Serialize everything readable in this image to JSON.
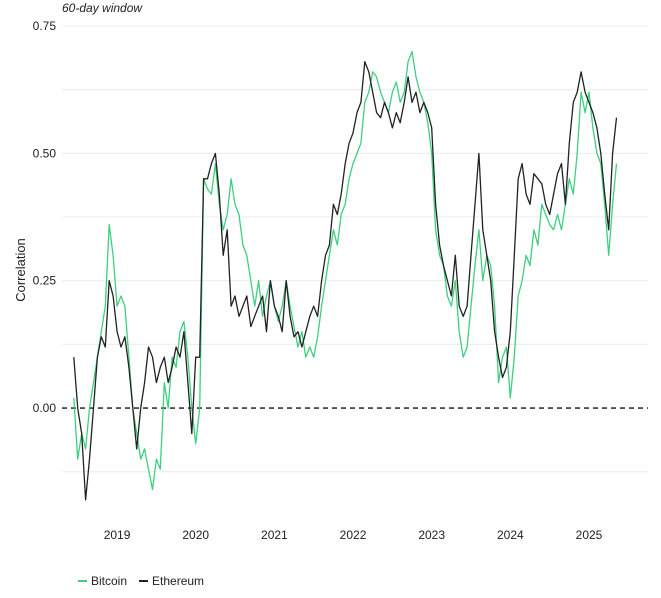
{
  "chart_data": {
    "type": "line",
    "subtitle": "60-day window",
    "ylabel": "Correlation",
    "xlabel": "",
    "ylim": [
      -0.2,
      0.75
    ],
    "y_ticks": [
      0.0,
      0.25,
      0.5,
      0.75
    ],
    "y_tick_labels": [
      "0.00",
      "0.25",
      "0.50",
      "0.75"
    ],
    "xlim": [
      2018.3,
      2025.75
    ],
    "x_ticks": [
      2019,
      2020,
      2021,
      2022,
      2023,
      2024,
      2025
    ],
    "x_tick_labels": [
      "2019",
      "2020",
      "2021",
      "2022",
      "2023",
      "2024",
      "2025"
    ],
    "reference_line": {
      "y": 0.0,
      "style": "dashed"
    },
    "grid": "horizontal",
    "legend_position": "bottom-left",
    "series": [
      {
        "name": "Bitcoin",
        "color": "#3ecf7f",
        "x": [
          2018.45,
          2018.5,
          2018.55,
          2018.6,
          2018.65,
          2018.7,
          2018.75,
          2018.8,
          2018.85,
          2018.9,
          2018.95,
          2019.0,
          2019.05,
          2019.1,
          2019.15,
          2019.2,
          2019.25,
          2019.3,
          2019.35,
          2019.4,
          2019.45,
          2019.5,
          2019.55,
          2019.6,
          2019.65,
          2019.7,
          2019.75,
          2019.8,
          2019.85,
          2019.9,
          2019.95,
          2020.0,
          2020.05,
          2020.1,
          2020.15,
          2020.2,
          2020.25,
          2020.3,
          2020.35,
          2020.4,
          2020.45,
          2020.5,
          2020.55,
          2020.6,
          2020.65,
          2020.7,
          2020.75,
          2020.8,
          2020.85,
          2020.9,
          2020.95,
          2021.0,
          2021.05,
          2021.1,
          2021.15,
          2021.2,
          2021.25,
          2021.3,
          2021.35,
          2021.4,
          2021.45,
          2021.5,
          2021.55,
          2021.6,
          2021.65,
          2021.7,
          2021.75,
          2021.8,
          2021.85,
          2021.9,
          2021.95,
          2022.0,
          2022.05,
          2022.1,
          2022.15,
          2022.2,
          2022.25,
          2022.3,
          2022.35,
          2022.4,
          2022.45,
          2022.5,
          2022.55,
          2022.6,
          2022.65,
          2022.7,
          2022.75,
          2022.8,
          2022.85,
          2022.9,
          2022.95,
          2023.0,
          2023.05,
          2023.1,
          2023.15,
          2023.2,
          2023.25,
          2023.3,
          2023.35,
          2023.4,
          2023.45,
          2023.5,
          2023.55,
          2023.6,
          2023.65,
          2023.7,
          2023.75,
          2023.8,
          2023.85,
          2023.9,
          2023.95,
          2024.0,
          2024.05,
          2024.1,
          2024.15,
          2024.2,
          2024.25,
          2024.3,
          2024.35,
          2024.4,
          2024.45,
          2024.5,
          2024.55,
          2024.6,
          2024.65,
          2024.7,
          2024.75,
          2024.8,
          2024.85,
          2024.9,
          2024.95,
          2025.0,
          2025.05,
          2025.1,
          2025.15,
          2025.2,
          2025.25,
          2025.3,
          2025.35
        ],
        "values": [
          0.02,
          -0.1,
          -0.05,
          -0.08,
          0.0,
          0.05,
          0.1,
          0.15,
          0.2,
          0.36,
          0.3,
          0.2,
          0.22,
          0.2,
          0.1,
          0.0,
          -0.05,
          -0.1,
          -0.08,
          -0.12,
          -0.16,
          -0.1,
          -0.12,
          0.05,
          0.0,
          0.1,
          0.08,
          0.15,
          0.17,
          0.1,
          0.0,
          -0.07,
          0.0,
          0.45,
          0.43,
          0.42,
          0.48,
          0.4,
          0.35,
          0.38,
          0.45,
          0.4,
          0.38,
          0.32,
          0.3,
          0.25,
          0.2,
          0.25,
          0.18,
          0.22,
          0.25,
          0.2,
          0.17,
          0.2,
          0.25,
          0.2,
          0.16,
          0.12,
          0.15,
          0.1,
          0.12,
          0.1,
          0.14,
          0.2,
          0.25,
          0.3,
          0.35,
          0.32,
          0.38,
          0.4,
          0.45,
          0.48,
          0.5,
          0.52,
          0.6,
          0.62,
          0.66,
          0.65,
          0.62,
          0.6,
          0.58,
          0.62,
          0.64,
          0.6,
          0.62,
          0.68,
          0.7,
          0.65,
          0.62,
          0.6,
          0.56,
          0.5,
          0.35,
          0.3,
          0.28,
          0.22,
          0.2,
          0.25,
          0.15,
          0.1,
          0.12,
          0.2,
          0.28,
          0.35,
          0.25,
          0.3,
          0.28,
          0.2,
          0.05,
          0.1,
          0.12,
          0.02,
          0.1,
          0.22,
          0.25,
          0.3,
          0.28,
          0.35,
          0.32,
          0.4,
          0.38,
          0.36,
          0.35,
          0.38,
          0.35,
          0.4,
          0.45,
          0.42,
          0.5,
          0.62,
          0.58,
          0.62,
          0.55,
          0.5,
          0.48,
          0.4,
          0.3,
          0.4,
          0.48
        ]
      },
      {
        "name": "Ethereum",
        "color": "#222222",
        "x": [
          2018.45,
          2018.5,
          2018.55,
          2018.6,
          2018.65,
          2018.7,
          2018.75,
          2018.8,
          2018.85,
          2018.9,
          2018.95,
          2019.0,
          2019.05,
          2019.1,
          2019.15,
          2019.2,
          2019.25,
          2019.3,
          2019.35,
          2019.4,
          2019.45,
          2019.5,
          2019.55,
          2019.6,
          2019.65,
          2019.7,
          2019.75,
          2019.8,
          2019.85,
          2019.9,
          2019.95,
          2020.0,
          2020.05,
          2020.1,
          2020.15,
          2020.2,
          2020.25,
          2020.3,
          2020.35,
          2020.4,
          2020.45,
          2020.5,
          2020.55,
          2020.6,
          2020.65,
          2020.7,
          2020.75,
          2020.8,
          2020.85,
          2020.9,
          2020.95,
          2021.0,
          2021.05,
          2021.1,
          2021.15,
          2021.2,
          2021.25,
          2021.3,
          2021.35,
          2021.4,
          2021.45,
          2021.5,
          2021.55,
          2021.6,
          2021.65,
          2021.7,
          2021.75,
          2021.8,
          2021.85,
          2021.9,
          2021.95,
          2022.0,
          2022.05,
          2022.1,
          2022.15,
          2022.2,
          2022.25,
          2022.3,
          2022.35,
          2022.4,
          2022.45,
          2022.5,
          2022.55,
          2022.6,
          2022.65,
          2022.7,
          2022.75,
          2022.8,
          2022.85,
          2022.9,
          2022.95,
          2023.0,
          2023.05,
          2023.1,
          2023.15,
          2023.2,
          2023.25,
          2023.3,
          2023.35,
          2023.4,
          2023.45,
          2023.5,
          2023.55,
          2023.6,
          2023.65,
          2023.7,
          2023.75,
          2023.8,
          2023.85,
          2023.9,
          2023.95,
          2024.0,
          2024.05,
          2024.1,
          2024.15,
          2024.2,
          2024.25,
          2024.3,
          2024.35,
          2024.4,
          2024.45,
          2024.5,
          2024.55,
          2024.6,
          2024.65,
          2024.7,
          2024.75,
          2024.8,
          2024.85,
          2024.9,
          2024.95,
          2025.0,
          2025.05,
          2025.1,
          2025.15,
          2025.2,
          2025.25,
          2025.3,
          2025.35
        ],
        "values": [
          0.1,
          0.0,
          -0.05,
          -0.18,
          -0.1,
          0.0,
          0.1,
          0.14,
          0.12,
          0.25,
          0.22,
          0.15,
          0.12,
          0.14,
          0.08,
          0.0,
          -0.08,
          0.0,
          0.05,
          0.12,
          0.1,
          0.05,
          0.08,
          0.1,
          0.05,
          0.08,
          0.12,
          0.1,
          0.15,
          0.05,
          -0.05,
          0.1,
          0.1,
          0.45,
          0.45,
          0.48,
          0.5,
          0.42,
          0.3,
          0.35,
          0.2,
          0.22,
          0.18,
          0.2,
          0.22,
          0.16,
          0.18,
          0.2,
          0.22,
          0.15,
          0.25,
          0.2,
          0.18,
          0.15,
          0.25,
          0.18,
          0.14,
          0.15,
          0.12,
          0.15,
          0.18,
          0.2,
          0.18,
          0.25,
          0.3,
          0.32,
          0.4,
          0.38,
          0.42,
          0.48,
          0.52,
          0.54,
          0.58,
          0.6,
          0.68,
          0.66,
          0.62,
          0.58,
          0.57,
          0.6,
          0.58,
          0.55,
          0.58,
          0.56,
          0.6,
          0.65,
          0.6,
          0.62,
          0.58,
          0.6,
          0.58,
          0.55,
          0.4,
          0.32,
          0.28,
          0.25,
          0.22,
          0.3,
          0.2,
          0.18,
          0.2,
          0.3,
          0.4,
          0.5,
          0.35,
          0.3,
          0.25,
          0.15,
          0.1,
          0.06,
          0.08,
          0.15,
          0.3,
          0.45,
          0.48,
          0.42,
          0.4,
          0.46,
          0.45,
          0.44,
          0.4,
          0.38,
          0.42,
          0.46,
          0.48,
          0.4,
          0.52,
          0.6,
          0.62,
          0.66,
          0.62,
          0.6,
          0.58,
          0.55,
          0.5,
          0.42,
          0.35,
          0.5,
          0.57
        ]
      }
    ]
  },
  "legend": {
    "items": [
      {
        "label": "Bitcoin",
        "color": "#3ecf7f"
      },
      {
        "label": "Ethereum",
        "color": "#222222"
      }
    ]
  }
}
